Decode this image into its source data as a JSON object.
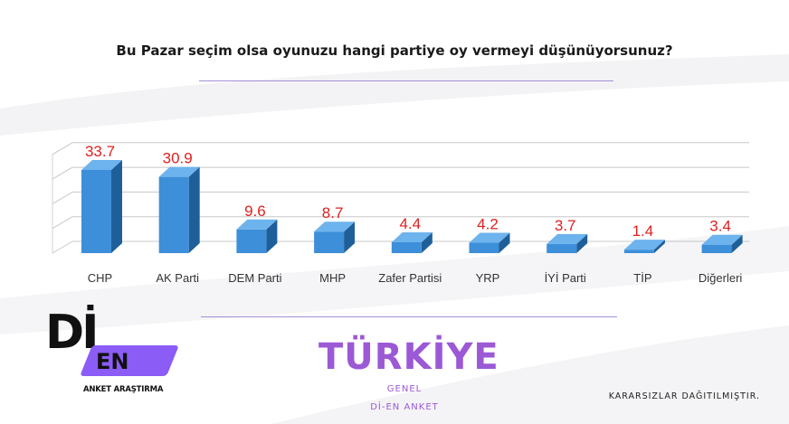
{
  "question": "Bu Pazar seçim olsa oyunuzu hangi partiye oy vermeyi düşünüyorsunuz?",
  "colors": {
    "bar_front": "#3d8fd9",
    "bar_side": "#1f5f99",
    "bar_top": "#6db3ee",
    "value_label": "#e02020",
    "accent": "#9b59d6",
    "rule": "#a58fd6"
  },
  "chart_data": {
    "type": "bar",
    "categories": [
      "CHP",
      "AK Parti",
      "DEM Parti",
      "MHP",
      "Zafer Partisi",
      "YRP",
      "İYİ Parti",
      "TİP",
      "Diğerleri"
    ],
    "values": [
      33.7,
      30.9,
      9.6,
      8.7,
      4.4,
      4.2,
      3.7,
      1.4,
      3.4
    ],
    "value_labels": [
      "33.7",
      "30.9",
      "9.6",
      "8.7",
      "4.4",
      "4.2",
      "3.7",
      "1.4",
      "3.4"
    ],
    "ylim": [
      0,
      40
    ],
    "grid": true,
    "style": "3d-column",
    "legend": "none",
    "xlabel": "",
    "ylabel": ""
  },
  "logo": {
    "wordmark_top": "Dİ",
    "wordmark_bottom": "EN",
    "subtitle": "ANKET ARAŞTIRMA"
  },
  "footer": {
    "region": "TÜRKİYE",
    "scope": "GENEL",
    "source": "Dİ-EN ANKET",
    "note": "KARARSIZLAR DAĞITILMIŞTIR."
  }
}
